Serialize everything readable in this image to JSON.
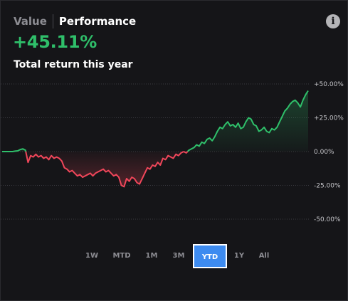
{
  "tabs": {
    "value_label": "Value",
    "performance_label": "Performance",
    "active": "Performance"
  },
  "info_icon": {
    "glyph": "i",
    "icon": "info-icon"
  },
  "summary": {
    "return_value": "+45.11%",
    "caption": "Total return this year"
  },
  "ranges": {
    "items": [
      "1W",
      "MTD",
      "1M",
      "3M",
      "YTD",
      "1Y",
      "All"
    ],
    "active": "YTD"
  },
  "colors": {
    "positive": "#2fbf6a",
    "negative": "#f0465a",
    "accent": "#3d8bf0",
    "background": "#151518"
  },
  "chart_data": {
    "type": "line",
    "title": "",
    "xlabel": "",
    "ylabel": "",
    "ylim": [
      -50,
      50
    ],
    "grid": true,
    "y_ticks": [
      "+50.00%",
      "+25.00%",
      "0.00%",
      "-25.00%",
      "-50.00%"
    ],
    "y_tick_values": [
      50,
      25,
      0,
      -25,
      -50
    ],
    "series": [
      {
        "values": [
          0,
          0,
          0,
          0,
          0,
          0.3,
          0.5,
          1.5,
          2,
          1,
          -8,
          -3,
          -4,
          -2,
          -4,
          -3,
          -5,
          -4,
          -6,
          -3,
          -5,
          -4,
          -5,
          -7,
          -12,
          -13,
          -15,
          -14,
          -16,
          -18,
          -17,
          -19,
          -18,
          -17,
          -16,
          -18,
          -16,
          -15,
          -14,
          -13,
          -15,
          -14,
          -16,
          -18,
          -17,
          -19,
          -25,
          -26,
          -20,
          -22,
          -19,
          -20,
          -23,
          -24,
          -20,
          -16,
          -12,
          -13,
          -10,
          -11,
          -8,
          -10,
          -5,
          -6,
          -3,
          -4,
          -5,
          -2,
          -3,
          -1,
          0,
          -1,
          1,
          2,
          3,
          5,
          4,
          7,
          6,
          9,
          10,
          8,
          11,
          15,
          18,
          17,
          20,
          22,
          19,
          20,
          18,
          21,
          17,
          18,
          22,
          25,
          24,
          20,
          19,
          15,
          16,
          18,
          15,
          14,
          17,
          16,
          18,
          22,
          26,
          30,
          32,
          35,
          37,
          38,
          36,
          33,
          38,
          42,
          45
        ]
      }
    ]
  }
}
